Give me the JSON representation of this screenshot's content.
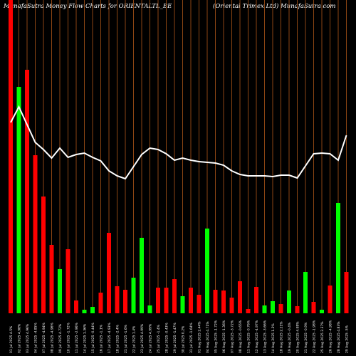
{
  "header": {
    "left": "MunafaSutra  Money Flow  Charts for ORIENTALTL_BE",
    "right": "(Oriental Trimex Ltd) MunafaSutra.com"
  },
  "chart_data": {
    "type": "bar",
    "grid": true,
    "colors": {
      "up": "#00ff00",
      "down": "#ff0000",
      "line": "#ffffff",
      "grid": "#8b4513",
      "background": "#000000"
    },
    "ylim": [
      0,
      440
    ],
    "line_ylim": [
      0,
      440
    ],
    "categories": [
      "01 Jul 2025 4.5%",
      "02 Jul 2025 4.98%",
      "03 Jul 2025 4.96%",
      "04 Jul 2025 -4.85%",
      "07 Jul 2025 -4.94%",
      "08 Jul 2025 -4.96%",
      "09 Jul 2025 4.72%",
      "10 Jul 2025 -1.72%",
      "11 Jul 2025 -2.96%",
      "14 Jul 2025 1.36%",
      "15 Jul 2025 -0.44%",
      "16 Jul 2025 -1.1%",
      "17 Jul 2025 -4.93%",
      "18 Jul 2025 -2.4%",
      "21 Jul 2025 -1.6%",
      "22 Jul 2025 1.4%",
      "23 Jul 2025 4.99%",
      "24 Jul 2025 4.99%",
      "25 Jul 2025 -1.4%",
      "28 Jul 2025 -0.43%",
      "29 Jul 2025 -1.47%",
      "30 Jul 2025 0.2%",
      "31 Jul 2025 -1.64%",
      "01 Aug 2025 2.44%",
      "04 Aug 2025 4.71%",
      "05 Aug 2025 -1.72%",
      "06 Aug 2025 -1.36%",
      "07 Aug 2025 -3.72%",
      "08 Aug 2025 -0.65%",
      "11 Aug 2025 -0.76%",
      "12 Aug 2025 -4.97%",
      "13 Aug 2025 -3.66%",
      "14 Aug 2025 1.3%",
      "18 Aug 2025 2.21%",
      "19 Aug 2025 -0.4%",
      "20 Aug 2025 4.98%",
      "21 Aug 2025 -0.9%",
      "22 Aug 2025 -1.98%",
      "25 Aug 2025 2.37%",
      "26 Aug 2025 -4.98%",
      "28 Aug 2025 4.83%",
      "29 Aug 2025 -5%"
    ],
    "series": [
      {
        "kind": "bar",
        "values": [
          440,
          318,
          342,
          222,
          164,
          96,
          62,
          90,
          18,
          5,
          9,
          29,
          113,
          38,
          33,
          50,
          106,
          11,
          36,
          36,
          48,
          24,
          36,
          26,
          119,
          33,
          32,
          22,
          45,
          6,
          37,
          11,
          17,
          13,
          32,
          10,
          58,
          16,
          5,
          39,
          155,
          58
        ],
        "direction": [
          "down",
          "up",
          "down",
          "down",
          "down",
          "down",
          "up",
          "down",
          "down",
          "up",
          "up",
          "down",
          "down",
          "down",
          "down",
          "up",
          "up",
          "up",
          "down",
          "down",
          "down",
          "up",
          "down",
          "down",
          "up",
          "down",
          "down",
          "down",
          "down",
          "down",
          "down",
          "up",
          "up",
          "down",
          "up",
          "down",
          "up",
          "down",
          "up",
          "down",
          "up",
          "down"
        ]
      },
      {
        "kind": "line",
        "values": [
          268,
          290,
          265,
          240,
          230,
          218,
          232,
          219,
          223,
          225,
          219,
          214,
          200,
          193,
          189,
          206,
          223,
          232,
          230,
          224,
          215,
          218,
          215,
          213,
          212,
          211,
          208,
          200,
          195,
          193,
          193,
          193,
          192,
          194,
          194,
          190,
          207,
          224,
          225,
          224,
          215,
          250
        ]
      }
    ]
  }
}
